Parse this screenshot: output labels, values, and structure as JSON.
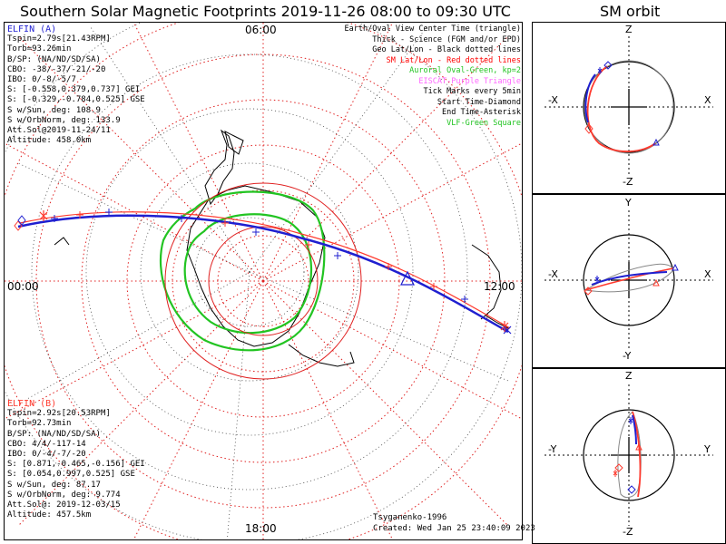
{
  "title": "Southern Solar Magnetic Footprints 2019-11-26 08:00 to 09:30 UTC",
  "orbit_title": "SM orbit",
  "hour_labels": {
    "top": "06:00",
    "left": "00:00",
    "right": "12:00",
    "bottom": "18:00"
  },
  "elfin_a": {
    "name": "ELFIN (A)",
    "color": "#1f1fd0",
    "lines": [
      "Tspin=2.79s[21.43RPM]",
      "Torb=93.26min",
      "B/SP: (NA/ND/SD/SA)",
      "CBO: -38/-37/-21/-20",
      "IBO: 0/-8/-5/7",
      "S: [-0.558,0.379,0.737] GEI",
      "S: [-0.329,-0.784,0.525] GSE",
      "S w/Sun, deg: 108.9",
      "S w/OrbNorm, deg: 133.9",
      "Att.Sol@2019-11-24/11",
      "Altitude: 458.0km"
    ]
  },
  "elfin_b": {
    "name": "ELFIN (B)",
    "color": "#ff3a2e",
    "lines": [
      "Tspin=2.92s[20.53RPM]",
      "Torb=92.73min",
      "B/SP: (NA/ND/SD/SA)",
      "CBO: 4/4/-117-14",
      "IBO: 0/-4/-7/-20",
      "S: [0.871,-0.465,-0.156] GEI",
      "S: [0.054,0.997,0.525] GSE",
      "S w/Sun, deg: 87.17",
      "S w/OrbNorm, deg: 9.774",
      "Att.Sol@: 2019-12-03/15",
      "Altitude: 457.5km"
    ]
  },
  "legend": [
    {
      "text": "Earth/Oval View Center Time (triangle)",
      "color": "#000000"
    },
    {
      "text": "Thick - Science (FGM and/or EPD)",
      "color": "#000000"
    },
    {
      "text": "Geo Lat/Lon - Black dotted lines",
      "color": "#000000"
    },
    {
      "text": "SM Lat/Lon - Red dotted lines",
      "color": "#ff0000"
    },
    {
      "text": "Auroral Oval-Green, kp=2",
      "color": "#22c422"
    },
    {
      "text": "EISCAT-Purple Triangle",
      "color": "#ff66ff"
    },
    {
      "text": "Tick Marks every 5min",
      "color": "#000000"
    },
    {
      "text": "Start Time-Diamond",
      "color": "#000000"
    },
    {
      "text": "End Time-Asterisk",
      "color": "#000000"
    },
    {
      "text": "VLF-Green Square",
      "color": "#22c422"
    }
  ],
  "footer": {
    "model": "Tsyganenko-1996",
    "created": "Created: Wed Jan 25 23:40:09 2023"
  },
  "panels": [
    {
      "top": "Z",
      "bottom": "-Z",
      "left": "-X",
      "right": "X"
    },
    {
      "top": "Y",
      "bottom": "-Y",
      "left": "-X",
      "right": "X"
    },
    {
      "top": "Z",
      "bottom": "-Z",
      "left": "-Y",
      "right": "Y"
    }
  ]
}
